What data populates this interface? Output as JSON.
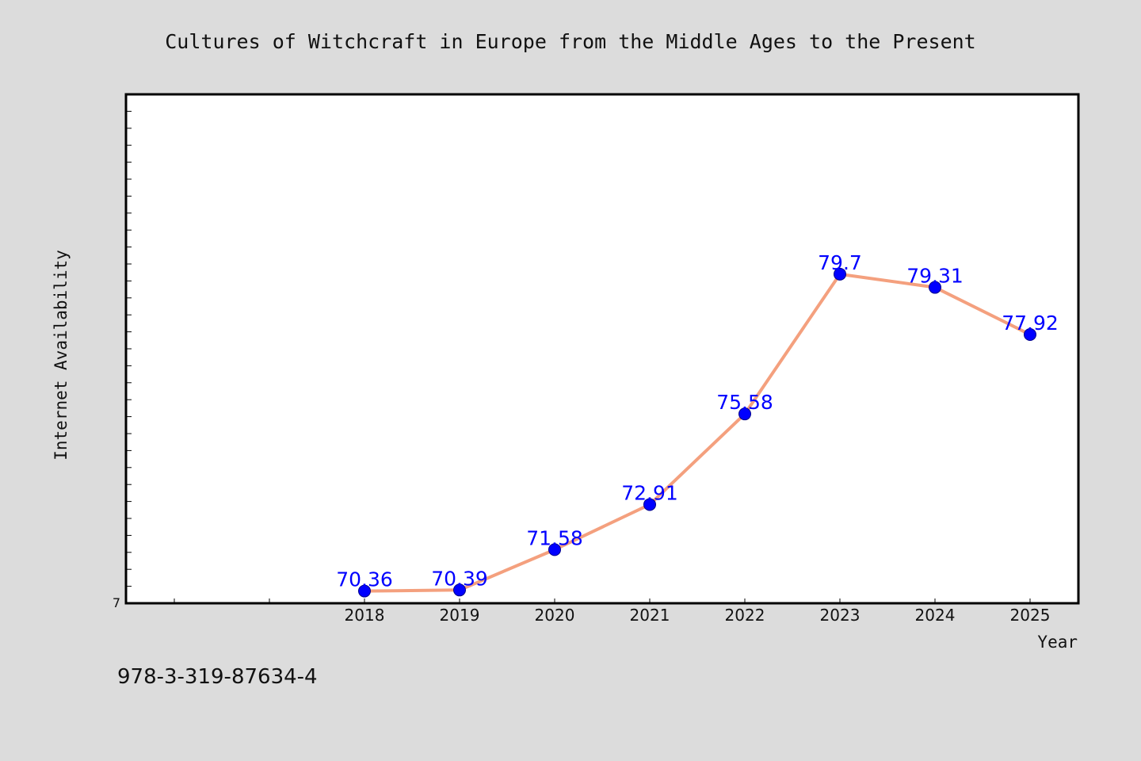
{
  "chart_data": {
    "type": "line",
    "title": "Cultures of Witchcraft in Europe from the Middle Ages to the Present",
    "xlabel": "Year",
    "ylabel": "Internet Availability",
    "categories": [
      "2018",
      "2019",
      "2020",
      "2021",
      "2022",
      "2023",
      "2024",
      "2025"
    ],
    "series": [
      {
        "values": [
          70.36,
          70.39,
          71.58,
          72.91,
          75.58,
          79.7,
          79.31,
          77.92
        ],
        "labels": [
          "70.36",
          "70.39",
          "71.58",
          "72.91",
          "75.58",
          "79.7",
          "79.31",
          "77.92"
        ]
      }
    ],
    "ylim": [
      70,
      85
    ],
    "y_tick_label": "7",
    "line_color": "#f4a07e",
    "marker_color": "#0000ff",
    "grid": false,
    "legend": "none"
  },
  "footer": {
    "isbn": "978-3-319-87634-4"
  }
}
